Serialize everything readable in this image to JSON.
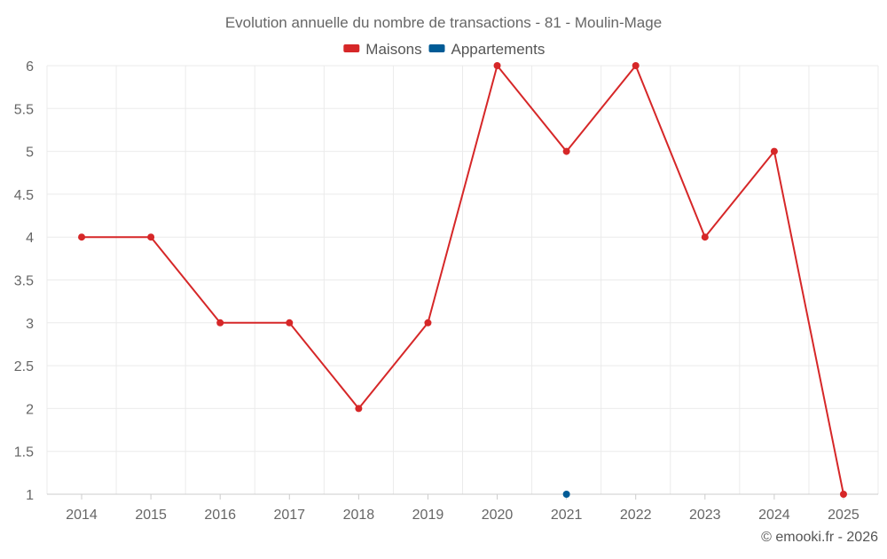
{
  "chart_data": {
    "type": "line",
    "title": "Evolution annuelle du nombre de transactions - 81 - Moulin-Mage",
    "xlabel": "",
    "ylabel": "",
    "categories": [
      "2014",
      "2015",
      "2016",
      "2017",
      "2018",
      "2019",
      "2020",
      "2021",
      "2022",
      "2023",
      "2024",
      "2025"
    ],
    "ylim": [
      1,
      6
    ],
    "yticks": [
      "1",
      "1.5",
      "2",
      "2.5",
      "3",
      "3.5",
      "4",
      "4.5",
      "5",
      "5.5",
      "6"
    ],
    "grid": true,
    "legend_position": "top-center",
    "series": [
      {
        "name": "Maisons",
        "color": "#d62728",
        "values": [
          4,
          4,
          3,
          3,
          2,
          3,
          6,
          5,
          6,
          4,
          5,
          1
        ]
      },
      {
        "name": "Appartements",
        "color": "#005b96",
        "values": [
          null,
          null,
          null,
          null,
          null,
          null,
          null,
          1,
          null,
          null,
          null,
          null
        ]
      }
    ]
  },
  "footer": {
    "credit": "© emooki.fr - 2026"
  },
  "colors": {
    "grid": "#ebebeb",
    "axis": "#cccccc",
    "text": "#666666"
  }
}
